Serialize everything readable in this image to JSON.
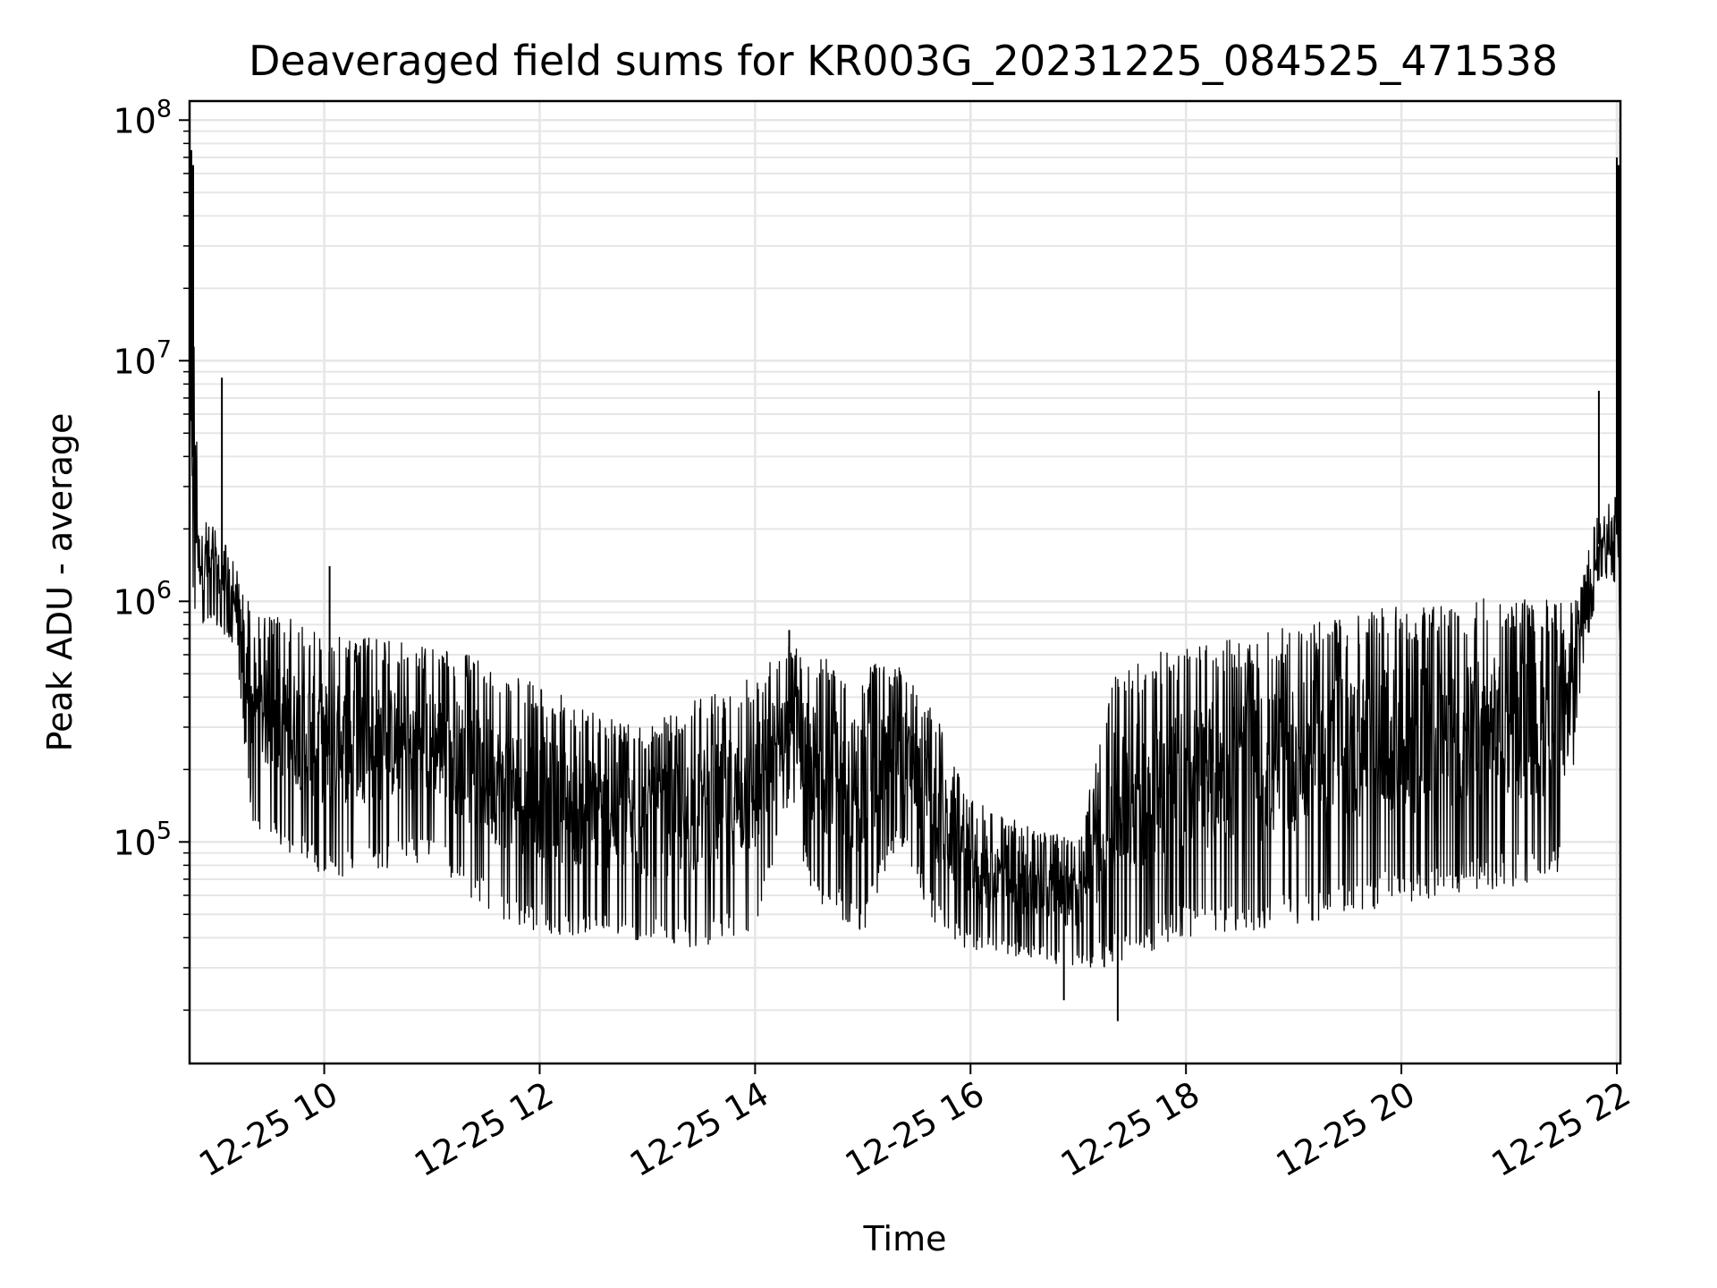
{
  "chart_data": {
    "type": "line",
    "title": "Deaveraged field sums for KR003G_20231225_084525_471538",
    "xlabel": "Time",
    "ylabel": "Peak ADU - average",
    "yscale": "log",
    "xlim": [
      "2023-12-25 08:45",
      "2023-12-25 22:02"
    ],
    "ylim": [
      12000,
      120000000
    ],
    "x_ticks": [
      {
        "t": "2023-12-25 10:00",
        "label": "12-25 10"
      },
      {
        "t": "2023-12-25 12:00",
        "label": "12-25 12"
      },
      {
        "t": "2023-12-25 14:00",
        "label": "12-25 14"
      },
      {
        "t": "2023-12-25 16:00",
        "label": "12-25 16"
      },
      {
        "t": "2023-12-25 18:00",
        "label": "12-25 18"
      },
      {
        "t": "2023-12-25 20:00",
        "label": "12-25 20"
      },
      {
        "t": "2023-12-25 22:00",
        "label": "12-25 22"
      }
    ],
    "y_ticks": [
      {
        "value": 100000,
        "base": "10",
        "exp": "5"
      },
      {
        "value": 1000000,
        "base": "10",
        "exp": "6"
      },
      {
        "value": 10000000,
        "base": "10",
        "exp": "7"
      },
      {
        "value": 100000000,
        "base": "10",
        "exp": "8"
      }
    ],
    "grid": true,
    "minor_grid": true,
    "line_color": "#000000",
    "grid_color": "#e6e6e6",
    "series": [
      {
        "envelope": [
          {
            "t": "2023-12-25 08:45",
            "low": 900000,
            "high": 70000000
          },
          {
            "t": "2023-12-25 08:50",
            "low": 800000,
            "high": 2500000
          },
          {
            "t": "2023-12-25 09:00",
            "low": 800000,
            "high": 2000000
          },
          {
            "t": "2023-12-25 09:10",
            "low": 650000,
            "high": 1500000
          },
          {
            "t": "2023-12-25 09:20",
            "low": 120000,
            "high": 900000
          },
          {
            "t": "2023-12-25 09:40",
            "low": 90000,
            "high": 850000
          },
          {
            "t": "2023-12-25 10:00",
            "low": 70000,
            "high": 750000
          },
          {
            "t": "2023-12-25 10:30",
            "low": 75000,
            "high": 700000
          },
          {
            "t": "2023-12-25 11:00",
            "low": 85000,
            "high": 650000
          },
          {
            "t": "2023-12-25 11:20",
            "low": 60000,
            "high": 600000
          },
          {
            "t": "2023-12-25 11:40",
            "low": 45000,
            "high": 500000
          },
          {
            "t": "2023-12-25 12:00",
            "low": 42000,
            "high": 450000
          },
          {
            "t": "2023-12-25 12:30",
            "low": 40000,
            "high": 350000
          },
          {
            "t": "2023-12-25 13:00",
            "low": 38000,
            "high": 300000
          },
          {
            "t": "2023-12-25 13:30",
            "low": 36000,
            "high": 400000
          },
          {
            "t": "2023-12-25 14:00",
            "low": 40000,
            "high": 500000
          },
          {
            "t": "2023-12-25 14:20",
            "low": 150000,
            "high": 700000
          },
          {
            "t": "2023-12-25 14:30",
            "low": 60000,
            "high": 600000
          },
          {
            "t": "2023-12-25 15:00",
            "low": 40000,
            "high": 550000
          },
          {
            "t": "2023-12-25 15:20",
            "low": 100000,
            "high": 550000
          },
          {
            "t": "2023-12-25 15:40",
            "low": 45000,
            "high": 350000
          },
          {
            "t": "2023-12-25 16:00",
            "low": 35000,
            "high": 150000
          },
          {
            "t": "2023-12-25 16:30",
            "low": 33000,
            "high": 120000
          },
          {
            "t": "2023-12-25 17:00",
            "low": 30000,
            "high": 100000
          },
          {
            "t": "2023-12-25 17:20",
            "low": 30000,
            "high": 500000
          },
          {
            "t": "2023-12-25 17:40",
            "low": 35000,
            "high": 600000
          },
          {
            "t": "2023-12-25 18:00",
            "low": 40000,
            "high": 650000
          },
          {
            "t": "2023-12-25 18:30",
            "low": 42000,
            "high": 700000
          },
          {
            "t": "2023-12-25 19:00",
            "low": 45000,
            "high": 800000
          },
          {
            "t": "2023-12-25 19:30",
            "low": 50000,
            "high": 900000
          },
          {
            "t": "2023-12-25 20:00",
            "low": 55000,
            "high": 950000
          },
          {
            "t": "2023-12-25 20:30",
            "low": 60000,
            "high": 1000000
          },
          {
            "t": "2023-12-25 21:00",
            "low": 65000,
            "high": 1050000
          },
          {
            "t": "2023-12-25 21:30",
            "low": 70000,
            "high": 1000000
          },
          {
            "t": "2023-12-25 21:40",
            "low": 450000,
            "high": 1200000
          },
          {
            "t": "2023-12-25 21:50",
            "low": 1200000,
            "high": 2500000
          },
          {
            "t": "2023-12-25 22:00",
            "low": 1200000,
            "high": 3000000
          },
          {
            "t": "2023-12-25 22:02",
            "low": 600000,
            "high": 2500000
          }
        ],
        "spikes": [
          {
            "t": "2023-12-25 08:46",
            "value": 75000000
          },
          {
            "t": "2023-12-25 08:47",
            "value": 65000000
          },
          {
            "t": "2023-12-25 09:03",
            "value": 8500000
          },
          {
            "t": "2023-12-25 10:03",
            "value": 1400000
          },
          {
            "t": "2023-12-25 14:19",
            "value": 760000
          },
          {
            "t": "2023-12-25 16:52",
            "value": 22000
          },
          {
            "t": "2023-12-25 17:22",
            "value": 18000
          },
          {
            "t": "2023-12-25 21:50",
            "value": 7500000
          },
          {
            "t": "2023-12-25 22:00",
            "value": 70000000
          },
          {
            "t": "2023-12-25 22:01",
            "value": 65000000
          },
          {
            "t": "2023-12-25 22:02",
            "value": 350000
          }
        ]
      }
    ]
  }
}
